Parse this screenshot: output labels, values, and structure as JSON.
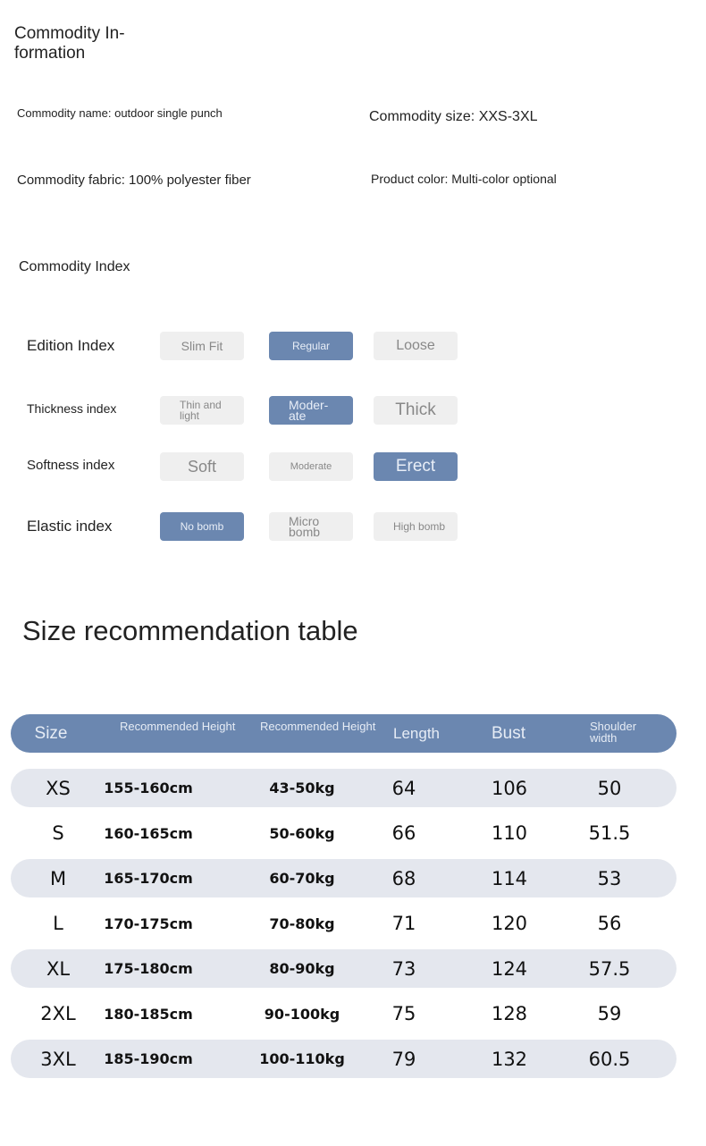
{
  "info": {
    "title": "Commodity In- formation",
    "name": "Commodity name: outdoor single punch",
    "size": "Commodity size: XXS-3XL",
    "fabric": "Commodity fabric: 100% polyester fiber",
    "color": "Product color: Multi-color optional"
  },
  "index": {
    "title": "Commodity Index",
    "rows": [
      {
        "label": "Edition Index",
        "options": [
          "Slim Fit",
          "Regular",
          "Loose"
        ],
        "selected": 1
      },
      {
        "label": "Thickness index",
        "options": [
          "Thin and light",
          "Moder- ate",
          "Thick"
        ],
        "selected": 1
      },
      {
        "label": "Softness index",
        "options": [
          "Soft",
          "Moderate",
          "Erect"
        ],
        "selected": 2
      },
      {
        "label": "Elastic index",
        "options": [
          "No bomb",
          "Micro bomb",
          "High bomb"
        ],
        "selected": 0
      }
    ]
  },
  "colors": {
    "accent": "#6b87b0",
    "button_off": "#efefef",
    "row_shade": "#e4e7ee"
  },
  "size_table": {
    "title": "Size recommendation table",
    "headers": [
      "Size",
      "Recommended Height",
      "Recommended Height",
      "Length",
      "Bust",
      "Shoulder width"
    ],
    "rows": [
      [
        "XS",
        "155-160cm",
        "43-50kg",
        "64",
        "106",
        "50"
      ],
      [
        "S",
        "160-165cm",
        "50-60kg",
        "66",
        "110",
        "51.5"
      ],
      [
        "M",
        "165-170cm",
        "60-70kg",
        "68",
        "114",
        "53"
      ],
      [
        "L",
        "170-175cm",
        "70-80kg",
        "71",
        "120",
        "56"
      ],
      [
        "XL",
        "175-180cm",
        "80-90kg",
        "73",
        "124",
        "57.5"
      ],
      [
        "2XL",
        "180-185cm",
        "90-100kg",
        "75",
        "128",
        "59"
      ],
      [
        "3XL",
        "185-190cm",
        "100-110kg",
        "79",
        "132",
        "60.5"
      ]
    ]
  }
}
